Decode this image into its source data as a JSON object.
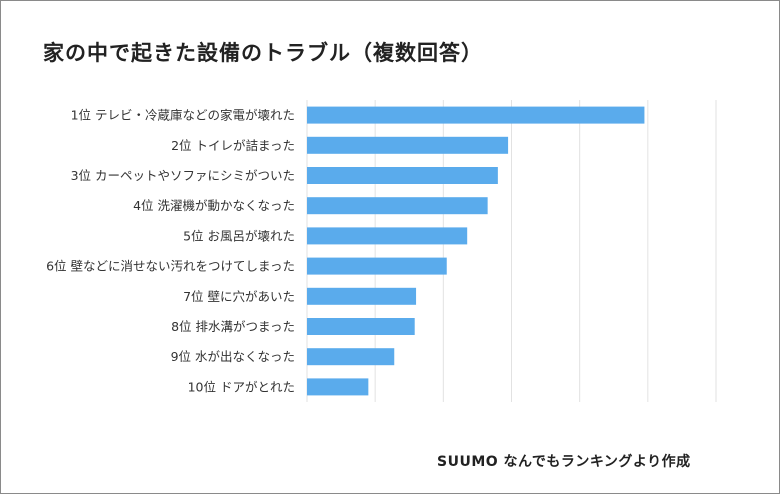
{
  "chart_data": {
    "type": "bar",
    "orientation": "horizontal",
    "title": "家の中で起きた設備のトラブル（複数回答）",
    "categories": [
      "1位  テレビ・冷蔵庫などの家電が壊れた",
      "2位  トイレが詰まった",
      "3位  カーペットやソファにシミがついた",
      "4位  洗濯機が動かなくなった",
      "5位  お風呂が壊れた",
      "6位  壁などに消せない汚れをつけてしまった",
      "7位  壁に穴があいた",
      "8位  排水溝がつまった",
      "9位  水が出なくなった",
      "10位  ドアがとれた"
    ],
    "values": [
      49.5,
      29.5,
      28,
      26.5,
      23.5,
      20.5,
      16,
      15.8,
      12.8,
      9
    ],
    "xlim": [
      0,
      60
    ],
    "grid": true,
    "bar_color": "#5aabec",
    "grid_color": "#e2e2e2"
  },
  "footer": {
    "credit": "SUUMO なんでもランキングより作成"
  }
}
